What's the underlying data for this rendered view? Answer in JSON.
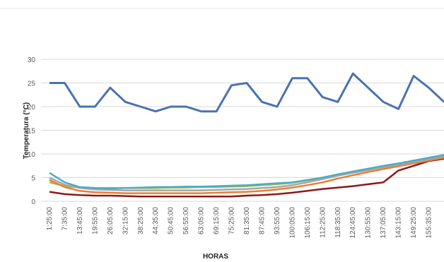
{
  "chart_data": {
    "type": "line",
    "y_label": "Temperatura (°C)",
    "x_label": "HORAS",
    "categories": [
      "1:25:00",
      "7:35:00",
      "13:45:00",
      "19:55:00",
      "26:05:00",
      "32:15:00",
      "38:25:00",
      "44:35:00",
      "50:45:00",
      "56:55:00",
      "63:05:00",
      "69:15:00",
      "75:25:00",
      "81:35:00",
      "87:45:00",
      "93:55:00",
      "100:05:00",
      "106:15:00",
      "112:25:00",
      "118:35:00",
      "124:45:00",
      "130:55:00",
      "137:05:00",
      "143:15:00",
      "149:25:00",
      "155:35:00",
      null
    ],
    "series": [
      {
        "color": "#4a72b0",
        "values": [
          25,
          25,
          20,
          20,
          24,
          21,
          20,
          19,
          20,
          20,
          19,
          19,
          24.5,
          25,
          21,
          20,
          26,
          26,
          22,
          21,
          27,
          24,
          21,
          19.5,
          26.5,
          24,
          21
        ]
      },
      {
        "color": "#4bacc6",
        "values": [
          6,
          4,
          3,
          2.8,
          2.7,
          2.8,
          2.9,
          3,
          3,
          3.1,
          3.1,
          3.2,
          3.3,
          3.4,
          3.6,
          3.8,
          4,
          4.5,
          5,
          5.7,
          6.3,
          6.9,
          7.5,
          8,
          8.6,
          9.2,
          9.8
        ]
      },
      {
        "color": "#a5a5a5",
        "values": [
          5,
          3.5,
          2.8,
          2.5,
          2.4,
          2.3,
          2.3,
          2.3,
          2.3,
          2.3,
          2.3,
          2.4,
          2.5,
          2.6,
          2.8,
          3,
          3.4,
          4,
          4.7,
          5.4,
          6,
          6.6,
          7.2,
          7.7,
          8.3,
          8.9,
          9.5
        ]
      },
      {
        "color": "#ed7d31",
        "values": [
          4.5,
          3,
          2.2,
          1.9,
          1.8,
          1.7,
          1.7,
          1.7,
          1.7,
          1.7,
          1.7,
          1.8,
          1.9,
          2,
          2.2,
          2.5,
          2.9,
          3.4,
          4,
          4.8,
          5.5,
          6.2,
          6.8,
          7.4,
          8,
          8.6,
          9.2
        ]
      },
      {
        "color": "#9bbb59",
        "values": [
          4,
          3.2,
          2.9,
          2.8,
          2.8,
          2.8,
          2.8,
          2.8,
          2.9,
          2.9,
          3,
          3,
          3.1,
          3.2,
          3.4,
          3.6,
          3.9,
          4.4,
          5,
          5.6,
          6.2,
          6.8,
          7.3,
          7.8,
          8.3,
          8.8,
          9.3
        ]
      },
      {
        "color": "#8b1a1a",
        "values": [
          2,
          1.5,
          1.3,
          1.2,
          1.2,
          1.1,
          1,
          1,
          1,
          1,
          1,
          1,
          1,
          1.2,
          1.3,
          1.5,
          1.8,
          2.2,
          2.6,
          2.9,
          3.2,
          3.6,
          4,
          6.5,
          7.5,
          8.5,
          9
        ]
      }
    ],
    "ylim": [
      0,
      30
    ],
    "yticks": [
      0,
      5,
      10,
      15,
      20,
      25,
      30
    ],
    "grid": true
  }
}
